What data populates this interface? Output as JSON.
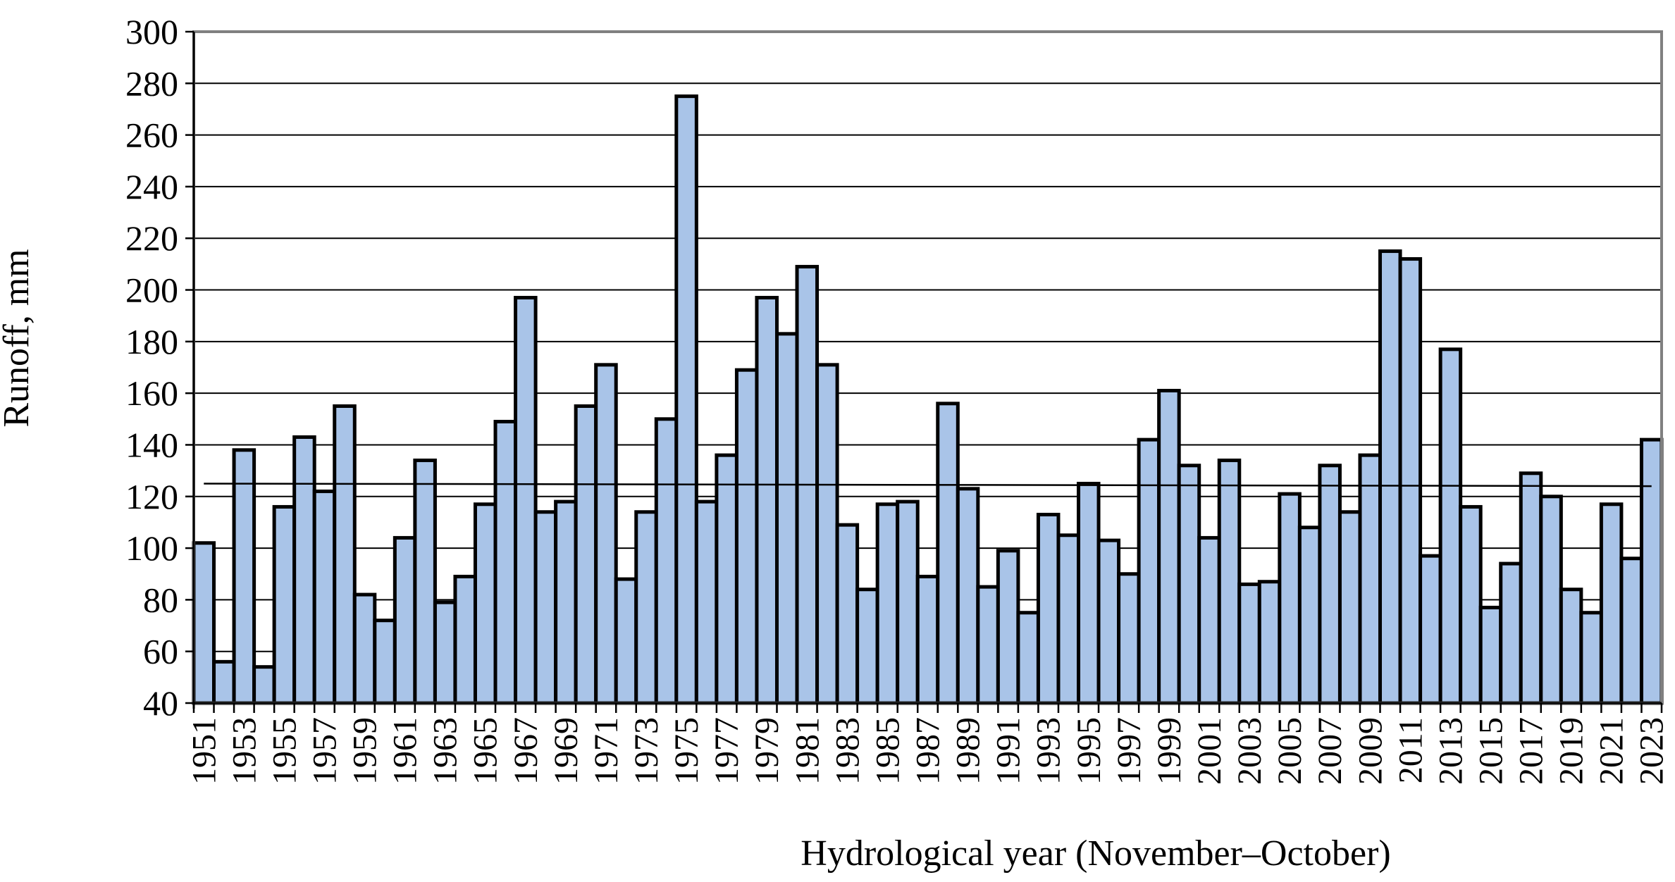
{
  "chart_data": {
    "type": "bar",
    "title": "",
    "xlabel": "Hydrological year (November–October)",
    "ylabel": "Runoff, mm",
    "ylim": [
      40,
      300
    ],
    "y_ticks": [
      "40",
      "60",
      "80",
      "100",
      "120",
      "140",
      "160",
      "180",
      "200",
      "220",
      "240",
      "260",
      "280",
      "300"
    ],
    "grid": "horizontal",
    "bar_color": "#a9c4e8",
    "categories": [
      "1951",
      "1952",
      "1953",
      "1954",
      "1955",
      "1956",
      "1957",
      "1958",
      "1959",
      "1960",
      "1961",
      "1962",
      "1963",
      "1964",
      "1965",
      "1966",
      "1967",
      "1968",
      "1969",
      "1970",
      "1971",
      "1972",
      "1973",
      "1974",
      "1975",
      "1976",
      "1977",
      "1978",
      "1979",
      "1980",
      "1981",
      "1982",
      "1983",
      "1984",
      "1985",
      "1986",
      "1987",
      "1988",
      "1989",
      "1990",
      "1991",
      "1992",
      "1993",
      "1994",
      "1995",
      "1996",
      "1997",
      "1998",
      "1999",
      "2000",
      "2001",
      "2002",
      "2003",
      "2004",
      "2005",
      "2006",
      "2007",
      "2008",
      "2009",
      "2010",
      "2011",
      "2012",
      "2013",
      "2014",
      "2015",
      "2016",
      "2017",
      "2018",
      "2019",
      "2020",
      "2021",
      "2022",
      "2023"
    ],
    "x_tick_labels": [
      "1951",
      "1953",
      "1955",
      "1957",
      "1959",
      "1961",
      "1963",
      "1965",
      "1967",
      "1969",
      "1971",
      "1973",
      "1975",
      "1977",
      "1979",
      "1981",
      "1983",
      "1985",
      "1987",
      "1989",
      "1991",
      "1993",
      "1995",
      "1997",
      "1999",
      "2001",
      "2003",
      "2005",
      "2007",
      "2009",
      "2011",
      "2013",
      "2015",
      "2017",
      "2019",
      "2021",
      "2023"
    ],
    "values": [
      102,
      56,
      138,
      54,
      116,
      143,
      122,
      155,
      82,
      72,
      104,
      134,
      79,
      89,
      117,
      149,
      197,
      114,
      118,
      155,
      171,
      88,
      114,
      150,
      275,
      118,
      136,
      169,
      197,
      183,
      209,
      171,
      109,
      84,
      117,
      118,
      89,
      156,
      123,
      85,
      99,
      75,
      113,
      105,
      125,
      103,
      90,
      142,
      161,
      132,
      104,
      134,
      86,
      87,
      121,
      108,
      132,
      114,
      136,
      215,
      212,
      97,
      177,
      116,
      77,
      94,
      129,
      120,
      84,
      75,
      117,
      96,
      142
    ],
    "trend": [
      125,
      124
    ]
  }
}
